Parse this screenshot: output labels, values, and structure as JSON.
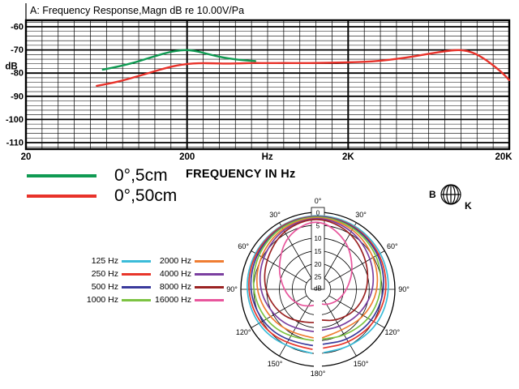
{
  "bk_logo": {
    "letter_b": "B",
    "letter_k": "K"
  },
  "chart_data": [
    {
      "type": "line",
      "title": "A: Frequency Response,Magn dB re 10.00V/Pa",
      "x_scale": "log",
      "x_grid": "third-octave",
      "x_min": 20,
      "x_max": 20000,
      "x_axis_caption": "FREQUENCY IN Hz",
      "y_unit": "dB",
      "ylim": [
        -110,
        -60
      ],
      "y_major_step": 10,
      "y_minor_step": 2,
      "x_tick_labels": [
        {
          "value": 20,
          "label": "20"
        },
        {
          "value": 200,
          "label": "200"
        },
        {
          "value": 630,
          "label": "Hz"
        },
        {
          "value": 2000,
          "label": "2K"
        },
        {
          "value": 20000,
          "label": "20K"
        }
      ],
      "y_tick_labels": [
        {
          "value": -60,
          "label": "-60"
        },
        {
          "value": -70,
          "label": "-70"
        },
        {
          "value": -80,
          "label": "-80"
        },
        {
          "value": -90,
          "label": "-90"
        },
        {
          "value": -100,
          "label": "-100"
        },
        {
          "value": -110,
          "label": "-110"
        }
      ],
      "series": [
        {
          "name": "0°,5cm",
          "color": "#0f9a52",
          "points": [
            [
              60,
              -78.5
            ],
            [
              70,
              -77.6
            ],
            [
              82,
              -76.5
            ],
            [
              95,
              -75.4
            ],
            [
              110,
              -74.0
            ],
            [
              128,
              -72.6
            ],
            [
              148,
              -71.3
            ],
            [
              170,
              -70.4
            ],
            [
              195,
              -70.0
            ],
            [
              220,
              -70.3
            ],
            [
              250,
              -71.2
            ],
            [
              285,
              -72.2
            ],
            [
              330,
              -73.2
            ],
            [
              390,
              -74.0
            ],
            [
              460,
              -74.5
            ],
            [
              530,
              -74.8
            ]
          ]
        },
        {
          "name": "0°,50cm",
          "color": "#e8322a",
          "points": [
            [
              55,
              -85.5
            ],
            [
              65,
              -84.6
            ],
            [
              78,
              -83.4
            ],
            [
              92,
              -82.0
            ],
            [
              108,
              -80.6
            ],
            [
              126,
              -79.2
            ],
            [
              148,
              -77.8
            ],
            [
              172,
              -76.7
            ],
            [
              200,
              -76.0
            ],
            [
              240,
              -75.7
            ],
            [
              290,
              -75.8
            ],
            [
              350,
              -75.9
            ],
            [
              430,
              -75.8
            ],
            [
              520,
              -75.6
            ],
            [
              650,
              -75.7
            ],
            [
              800,
              -75.6
            ],
            [
              1000,
              -75.7
            ],
            [
              1300,
              -75.6
            ],
            [
              1700,
              -75.5
            ],
            [
              2200,
              -75.3
            ],
            [
              2800,
              -75.0
            ],
            [
              3600,
              -74.3
            ],
            [
              4500,
              -73.4
            ],
            [
              5600,
              -72.3
            ],
            [
              7000,
              -71.2
            ],
            [
              8500,
              -70.3
            ],
            [
              9800,
              -70.0
            ],
            [
              11000,
              -70.4
            ],
            [
              12500,
              -71.8
            ],
            [
              14500,
              -74.5
            ],
            [
              16500,
              -77.5
            ],
            [
              18500,
              -80.5
            ],
            [
              20000,
              -83.0
            ]
          ]
        }
      ]
    },
    {
      "type": "polar",
      "unit": "dB",
      "ring_values_db": [
        0,
        5,
        10,
        15,
        20,
        25
      ],
      "center_db": 30,
      "angle_step_deg": 30,
      "angle_labels": [
        "0°",
        "30°",
        "60°",
        "90°",
        "120°",
        "150°",
        "180°"
      ],
      "series": [
        {
          "name": "125 Hz",
          "color": "#3bbcd9",
          "points_angle_db": [
            [
              -175,
              5
            ],
            [
              -150,
              4
            ],
            [
              -120,
              2.5
            ],
            [
              -90,
              1.5
            ],
            [
              -60,
              1
            ],
            [
              -30,
              0.5
            ],
            [
              0,
              0.3
            ],
            [
              30,
              0.5
            ],
            [
              60,
              1
            ],
            [
              90,
              1.6
            ],
            [
              120,
              2.6
            ],
            [
              150,
              4.2
            ],
            [
              175,
              5.2
            ]
          ]
        },
        {
          "name": "250 Hz",
          "color": "#e8362a",
          "points_angle_db": [
            [
              -175,
              6.5
            ],
            [
              -150,
              5.2
            ],
            [
              -120,
              3.4
            ],
            [
              -90,
              2.2
            ],
            [
              -60,
              1.4
            ],
            [
              -30,
              0.7
            ],
            [
              0,
              0.5
            ],
            [
              30,
              0.9
            ],
            [
              60,
              1.7
            ],
            [
              90,
              2.6
            ],
            [
              120,
              4
            ],
            [
              150,
              5.8
            ],
            [
              175,
              7
            ]
          ]
        },
        {
          "name": "500 Hz",
          "color": "#3a3a9c",
          "points_angle_db": [
            [
              -175,
              8
            ],
            [
              -150,
              6.4
            ],
            [
              -120,
              4.6
            ],
            [
              -90,
              3
            ],
            [
              -60,
              2
            ],
            [
              -30,
              1
            ],
            [
              0,
              0.6
            ],
            [
              30,
              1.2
            ],
            [
              60,
              2.2
            ],
            [
              90,
              3.6
            ],
            [
              120,
              5.2
            ],
            [
              150,
              7
            ],
            [
              175,
              8.5
            ]
          ]
        },
        {
          "name": "1000 Hz",
          "color": "#7cc342",
          "points_angle_db": [
            [
              -175,
              10
            ],
            [
              -150,
              8.2
            ],
            [
              -120,
              6
            ],
            [
              -90,
              4.2
            ],
            [
              -60,
              2.6
            ],
            [
              -30,
              1.2
            ],
            [
              0,
              0.8
            ],
            [
              30,
              1.6
            ],
            [
              60,
              3
            ],
            [
              90,
              4.8
            ],
            [
              120,
              6.6
            ],
            [
              150,
              9
            ],
            [
              175,
              10.5
            ]
          ]
        },
        {
          "name": "2000 Hz",
          "color": "#ef7d32",
          "points_angle_db": [
            [
              -175,
              11
            ],
            [
              -150,
              10
            ],
            [
              -120,
              8
            ],
            [
              -90,
              5.6
            ],
            [
              -60,
              3.8
            ],
            [
              -30,
              1.8
            ],
            [
              0,
              1
            ],
            [
              30,
              2.2
            ],
            [
              60,
              4.4
            ],
            [
              90,
              6.2
            ],
            [
              120,
              8.8
            ],
            [
              150,
              11.5
            ],
            [
              175,
              11
            ]
          ]
        },
        {
          "name": "4000 Hz",
          "color": "#7b3fa0",
          "points_angle_db": [
            [
              -175,
              13.5
            ],
            [
              -150,
              12
            ],
            [
              -120,
              9.8
            ],
            [
              -90,
              7
            ],
            [
              -60,
              4.8
            ],
            [
              -30,
              2.4
            ],
            [
              0,
              1.2
            ],
            [
              30,
              3
            ],
            [
              60,
              5.8
            ],
            [
              90,
              8
            ],
            [
              120,
              10.8
            ],
            [
              150,
              13
            ],
            [
              175,
              14
            ]
          ]
        },
        {
          "name": "8000 Hz",
          "color": "#9b2323",
          "points_angle_db": [
            [
              -175,
              17
            ],
            [
              -150,
              15
            ],
            [
              -120,
              12
            ],
            [
              -90,
              9
            ],
            [
              -60,
              6.5
            ],
            [
              -30,
              3
            ],
            [
              0,
              1.4
            ],
            [
              30,
              4
            ],
            [
              60,
              7.8
            ],
            [
              90,
              10.5
            ],
            [
              120,
              13
            ],
            [
              150,
              15.8
            ],
            [
              175,
              18
            ]
          ]
        },
        {
          "name": "16000 Hz",
          "color": "#e8559c",
          "points_angle_db": [
            [
              -175,
              24
            ],
            [
              -150,
              22
            ],
            [
              -120,
              19.5
            ],
            [
              -90,
              16.5
            ],
            [
              -60,
              12
            ],
            [
              -30,
              5.5
            ],
            [
              0,
              2
            ],
            [
              30,
              7.5
            ],
            [
              60,
              14
            ],
            [
              90,
              18.5
            ],
            [
              120,
              21
            ],
            [
              150,
              23
            ],
            [
              175,
              24.5
            ]
          ]
        }
      ]
    }
  ]
}
